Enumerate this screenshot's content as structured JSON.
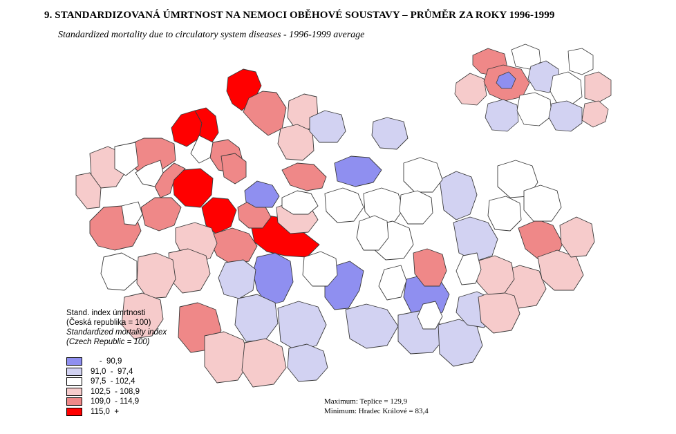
{
  "title": "9. STANDARDIZOVANÁ ÚMRTNOST NA NEMOCI OBĚHOVÉ SOUSTAVY – PRŮMĚR ZA ROKY 1996-1999",
  "subtitle": "Standardized mortality due to circulatory system diseases - 1996-1999 average",
  "legend": {
    "title_cz_1": "Stand. index úmrtnosti",
    "title_cz_2": "(Česká republika = 100)",
    "title_en_1": "Standardized mortality index",
    "title_en_2": "(Czech Republic = 100)",
    "classes": [
      {
        "label": "    -  90,9",
        "color": "#8f8ff0"
      },
      {
        "label": "91,0  -  97,4",
        "color": "#d2d2f2"
      },
      {
        "label": "97,5  - 102,4",
        "color": "#ffffff"
      },
      {
        "label": "102,5  - 108,9",
        "color": "#f6cbcb"
      },
      {
        "label": "109,0  - 114,9",
        "color": "#ef8888"
      },
      {
        "label": "115,0  +",
        "color": "#ff0000"
      }
    ]
  },
  "stats": {
    "maximum": "Maximum: Teplice = 129,9",
    "minimum": "Minimum: Hradec Králové = 83,4"
  }
}
